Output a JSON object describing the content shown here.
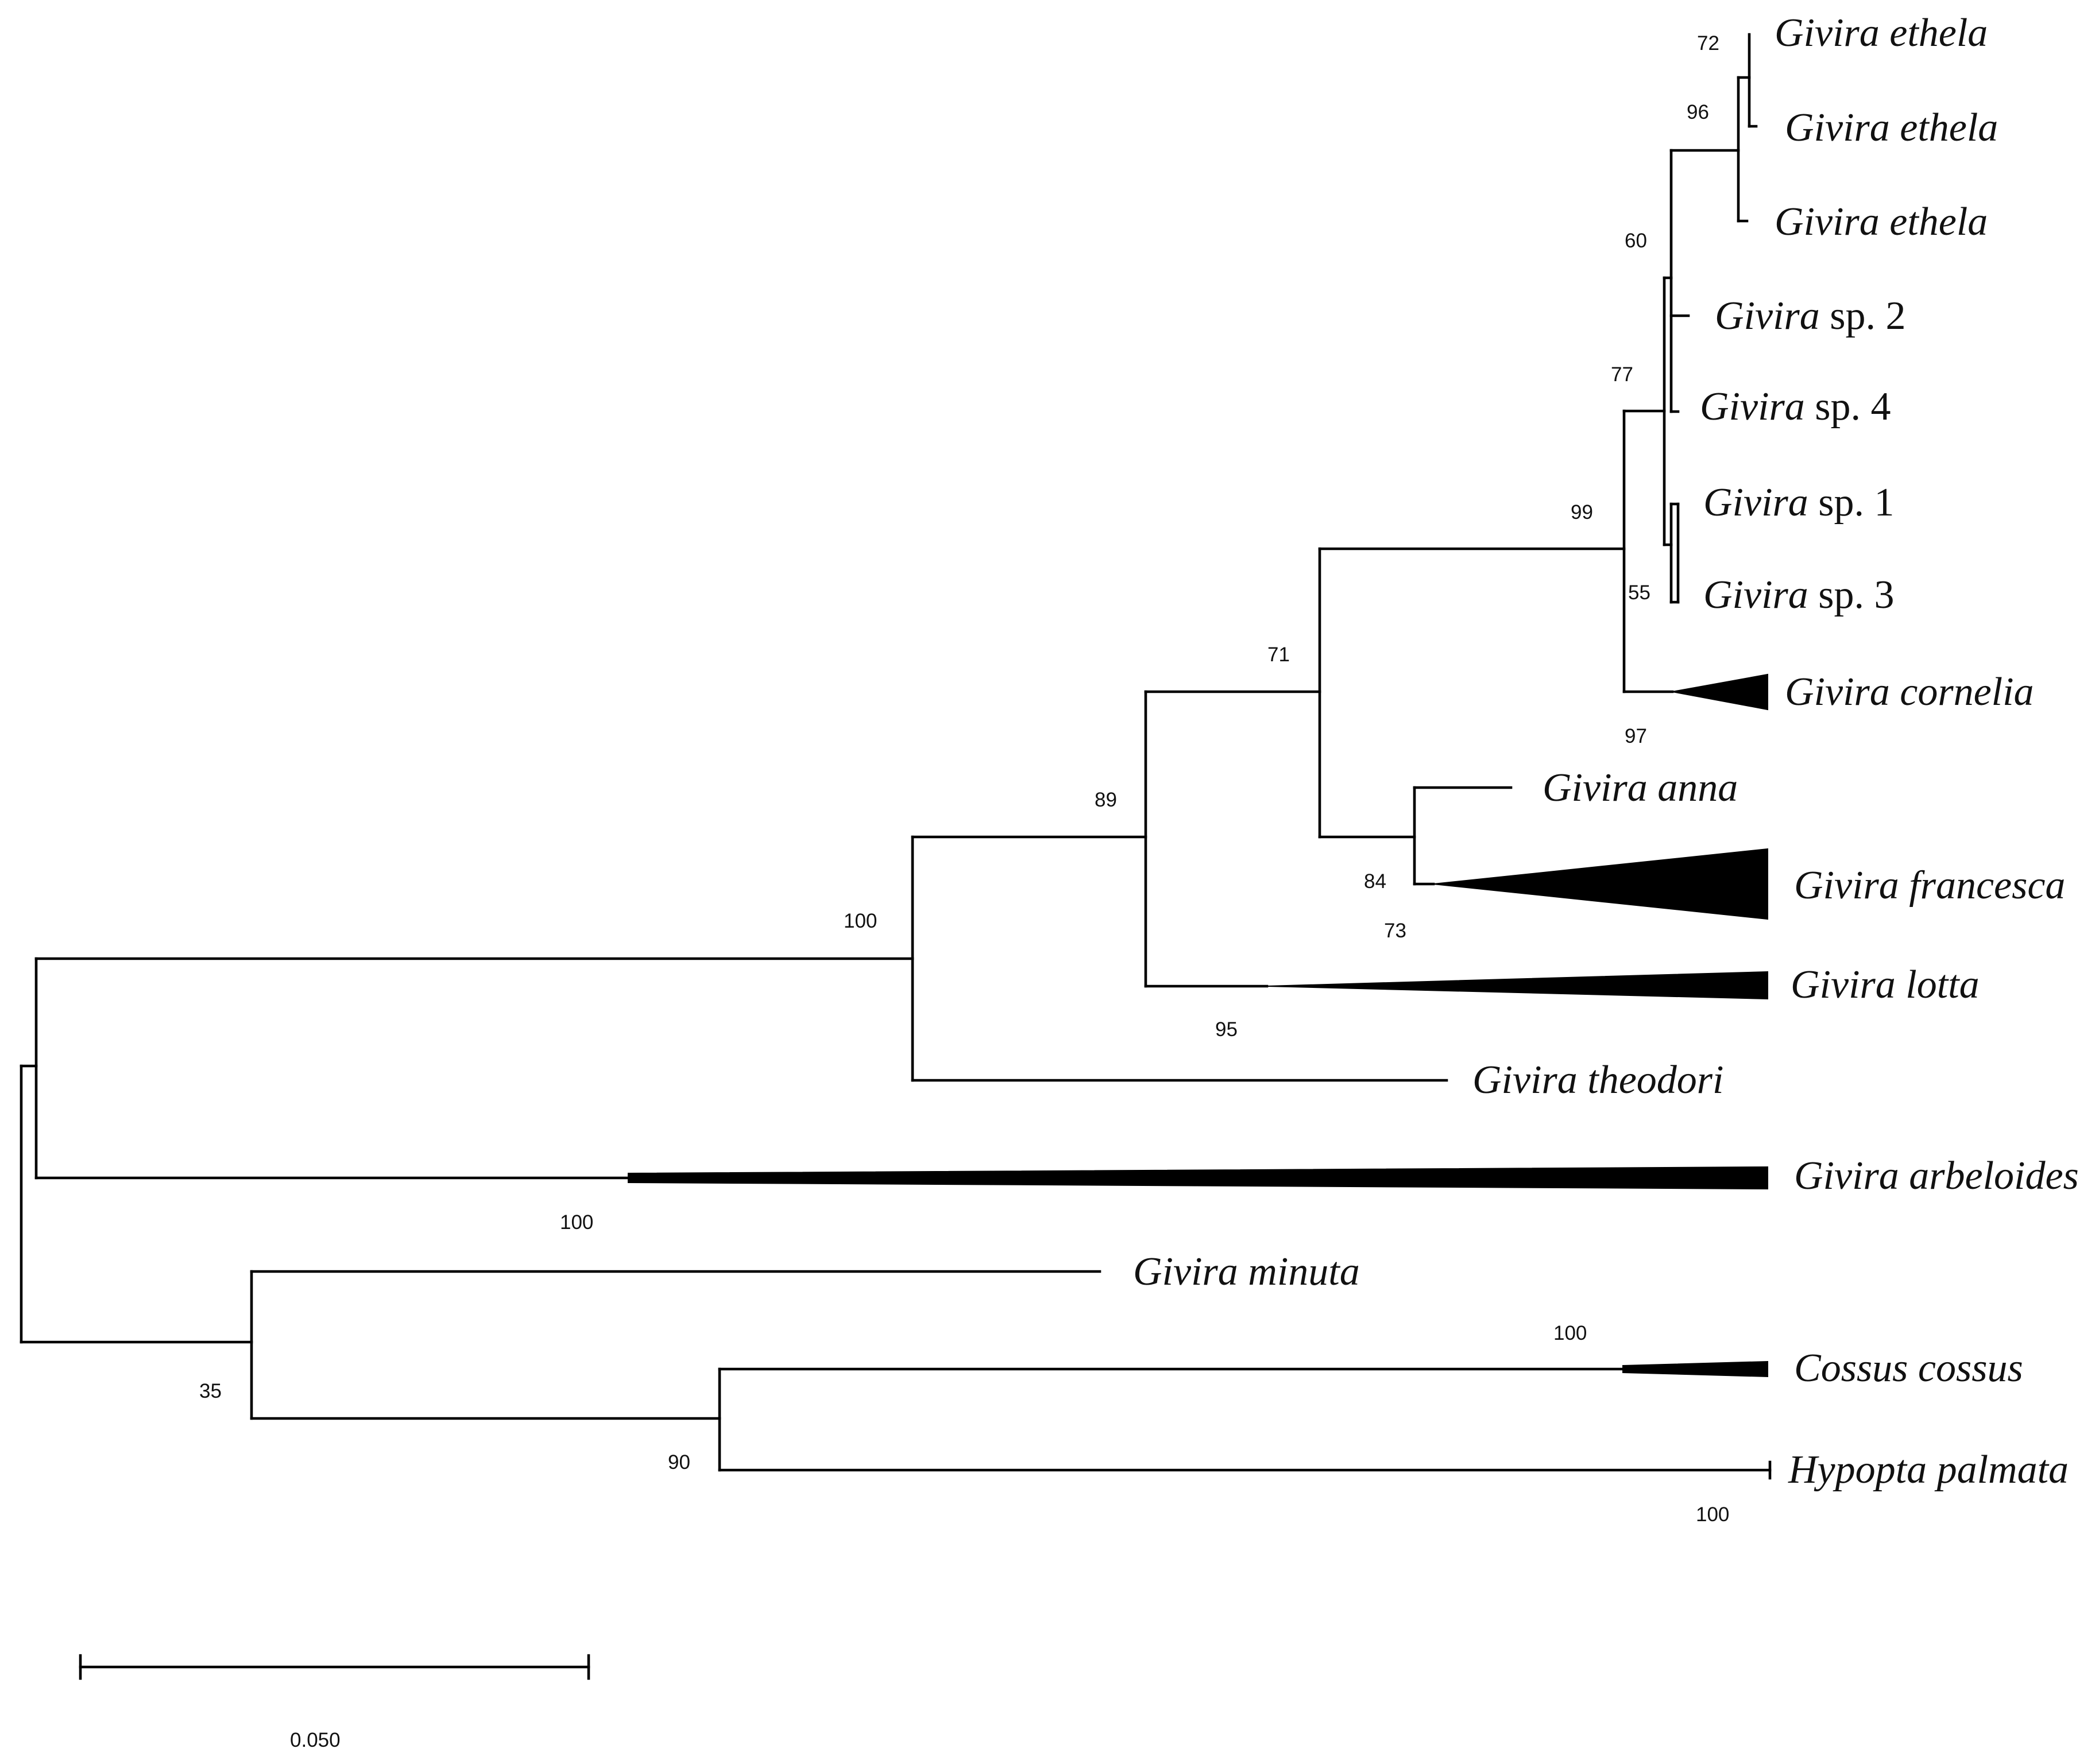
{
  "figure": {
    "taxa": {
      "ethela_1": {
        "genus": "Givira",
        "epithet": "ethela"
      },
      "ethela_2": {
        "genus": "Givira",
        "epithet": "ethela"
      },
      "ethela_3": {
        "genus": "Givira",
        "epithet": "ethela"
      },
      "sp2": {
        "genus": "Givira",
        "epithet": "sp. 2"
      },
      "sp4": {
        "genus": "Givira",
        "epithet": "sp. 4"
      },
      "sp1": {
        "genus": "Givira",
        "epithet": "sp. 1"
      },
      "sp3": {
        "genus": "Givira",
        "epithet": "sp. 3"
      },
      "cornelia": {
        "genus": "Givira",
        "epithet": "cornelia"
      },
      "anna": {
        "genus": "Givira",
        "epithet": "anna"
      },
      "francesca": {
        "genus": "Givira",
        "epithet": "francesca"
      },
      "lotta": {
        "genus": "Givira",
        "epithet": "lotta"
      },
      "theodori": {
        "genus": "Givira",
        "epithet": "theodori"
      },
      "arbeloides": {
        "genus": "Givira",
        "epithet": "arbeloides"
      },
      "minuta": {
        "genus": "Givira",
        "epithet": "minuta"
      },
      "cossus": {
        "genus": "Cossus",
        "epithet": "cossus"
      },
      "hypopta": {
        "genus": "Hypopta",
        "epithet": "palmata"
      }
    },
    "support": {
      "n72": "72",
      "n96": "96",
      "n60": "60",
      "n77": "77",
      "n99": "99",
      "n55": "55",
      "n97": "97",
      "n71": "71",
      "n89": "89",
      "n84": "84",
      "n73": "73",
      "n100_main": "100",
      "n95": "95",
      "n100_arbeloides": "100",
      "n100_cossus": "100",
      "n35": "35",
      "n90": "90",
      "n100_hypopta": "100"
    },
    "scale_bar": {
      "label": "0.050"
    }
  }
}
